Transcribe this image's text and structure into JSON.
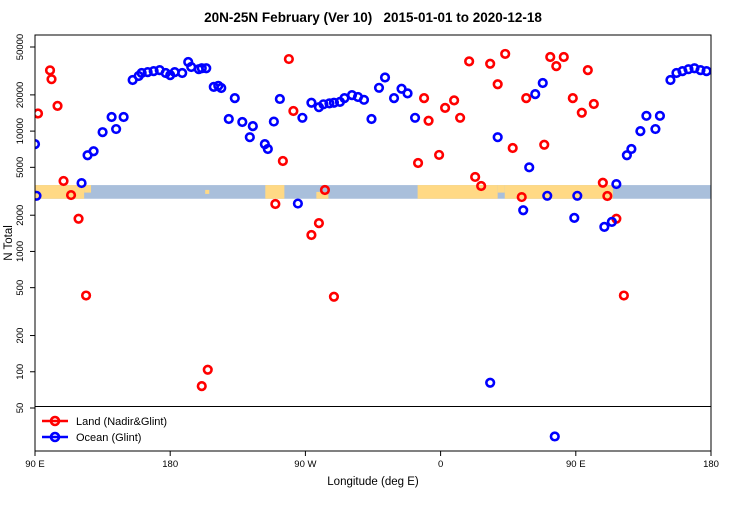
{
  "chart_data": {
    "type": "scatter",
    "title": "20N-25N February (Ver 10)   2015-01-01 to 2020-12-18",
    "xlabel": "Longitude (deg E)",
    "ylabel": "N Total",
    "x_axis": {
      "range": [
        90,
        540
      ],
      "ticks": [
        {
          "deg": 90,
          "label": "90 E"
        },
        {
          "deg": 180,
          "label": "180"
        },
        {
          "deg": 270,
          "label": "90 W"
        },
        {
          "deg": 360,
          "label": "0"
        },
        {
          "deg": 450,
          "label": "90 E"
        },
        {
          "deg": 540,
          "label": "180"
        }
      ]
    },
    "y_axis": {
      "scale": "log",
      "ticks": [
        50,
        100,
        200,
        500,
        1000,
        2000,
        5000,
        10000,
        20000,
        50000
      ]
    },
    "reference_line": {
      "value": 50,
      "color": "#000000"
    },
    "map_band": {
      "ocean_color": "#A9BFDB",
      "land_color": "#FFD985",
      "value_top": 3560,
      "value_bottom": 2740,
      "land_segments_deg": [
        {
          "from": 90,
          "to": 122.7,
          "half": "full"
        },
        {
          "from": 122.7,
          "to": 127.3,
          "half": "top"
        },
        {
          "from": 203.3,
          "to": 206.0,
          "half": "mid"
        },
        {
          "from": 243.3,
          "to": 256.0,
          "half": "full"
        },
        {
          "from": 277.3,
          "to": 285.3,
          "half": "bottom"
        },
        {
          "from": 344.7,
          "to": 398.0,
          "half": "full"
        },
        {
          "from": 398.0,
          "to": 402.7,
          "half": "top"
        },
        {
          "from": 402.7,
          "to": 474.7,
          "half": "full"
        }
      ]
    },
    "series": [
      {
        "id": "land",
        "name": "Land (Nadir&Glint)",
        "color": "#FF0000",
        "points": [
          [
            100,
            32000
          ],
          [
            101,
            27000
          ],
          [
            92,
            14000
          ],
          [
            105,
            16200
          ],
          [
            109,
            3850
          ],
          [
            114,
            2940
          ],
          [
            119,
            1870
          ],
          [
            124,
            430
          ],
          [
            205,
            104
          ],
          [
            201,
            76
          ],
          [
            259,
            39700
          ],
          [
            262,
            14700
          ],
          [
            255,
            5640
          ],
          [
            283,
            3240
          ],
          [
            250,
            2480
          ],
          [
            279,
            1720
          ],
          [
            274,
            1370
          ],
          [
            289,
            420
          ],
          [
            345,
            5430
          ],
          [
            349,
            18800
          ],
          [
            352,
            12200
          ],
          [
            359,
            6340
          ],
          [
            363,
            15600
          ],
          [
            369,
            18000
          ],
          [
            373,
            12900
          ],
          [
            379,
            38000
          ],
          [
            383,
            4160
          ],
          [
            387,
            3500
          ],
          [
            393,
            36300
          ],
          [
            398,
            24500
          ],
          [
            403,
            43800
          ],
          [
            408,
            7240
          ],
          [
            414,
            2830
          ],
          [
            417,
            18800
          ],
          [
            429,
            7700
          ],
          [
            433,
            41300
          ],
          [
            437,
            34700
          ],
          [
            442,
            41300
          ],
          [
            448,
            18800
          ],
          [
            454,
            14200
          ],
          [
            458,
            32100
          ],
          [
            462,
            16800
          ],
          [
            468,
            3720
          ],
          [
            471,
            2890
          ],
          [
            477,
            1870
          ],
          [
            482,
            430
          ]
        ]
      },
      {
        "id": "ocean",
        "name": "Ocean (Glint)",
        "color": "#0000FF",
        "points": [
          [
            90,
            7800
          ],
          [
            91,
            2900
          ],
          [
            121,
            3700
          ],
          [
            125,
            6300
          ],
          [
            129,
            6800
          ],
          [
            135,
            9800
          ],
          [
            141,
            13100
          ],
          [
            144,
            10400
          ],
          [
            149,
            13100
          ],
          [
            155,
            26600
          ],
          [
            159,
            28700
          ],
          [
            161,
            30400
          ],
          [
            165,
            30900
          ],
          [
            169,
            31500
          ],
          [
            173,
            32100
          ],
          [
            177,
            30400
          ],
          [
            180,
            29200
          ],
          [
            183,
            30900
          ],
          [
            188,
            30400
          ],
          [
            192,
            37500
          ],
          [
            194,
            34100
          ],
          [
            199,
            32700
          ],
          [
            201,
            33300
          ],
          [
            204,
            33300
          ],
          [
            209,
            23300
          ],
          [
            212,
            23800
          ],
          [
            214,
            22800
          ],
          [
            219,
            12600
          ],
          [
            223,
            18800
          ],
          [
            228,
            11900
          ],
          [
            233,
            8900
          ],
          [
            235,
            11000
          ],
          [
            243,
            7800
          ],
          [
            245,
            7100
          ],
          [
            249,
            12000
          ],
          [
            253,
            18500
          ],
          [
            265,
            2500
          ],
          [
            268,
            12900
          ],
          [
            274,
            17200
          ],
          [
            279,
            15800
          ],
          [
            282,
            16700
          ],
          [
            286,
            17000
          ],
          [
            289,
            17200
          ],
          [
            293,
            17500
          ],
          [
            296,
            18800
          ],
          [
            301,
            19900
          ],
          [
            305,
            19200
          ],
          [
            309,
            18200
          ],
          [
            314,
            12600
          ],
          [
            319,
            22900
          ],
          [
            323,
            27900
          ],
          [
            329,
            18800
          ],
          [
            334,
            22500
          ],
          [
            338,
            20600
          ],
          [
            343,
            12900
          ],
          [
            393,
            81
          ],
          [
            398,
            8900
          ],
          [
            415,
            2200
          ],
          [
            419,
            5000
          ],
          [
            423,
            20300
          ],
          [
            428,
            25100
          ],
          [
            431,
            2900
          ],
          [
            436,
            29
          ],
          [
            449,
            1900
          ],
          [
            451,
            2900
          ],
          [
            469,
            1600
          ],
          [
            474,
            1760
          ],
          [
            477,
            3630
          ],
          [
            484,
            6300
          ],
          [
            487,
            7100
          ],
          [
            493,
            10000
          ],
          [
            497,
            13400
          ],
          [
            503,
            10400
          ],
          [
            506,
            13400
          ],
          [
            513,
            26600
          ],
          [
            517,
            30400
          ],
          [
            521,
            31500
          ],
          [
            525,
            32700
          ],
          [
            529,
            33300
          ],
          [
            533,
            32100
          ],
          [
            537,
            31500
          ]
        ]
      }
    ]
  }
}
